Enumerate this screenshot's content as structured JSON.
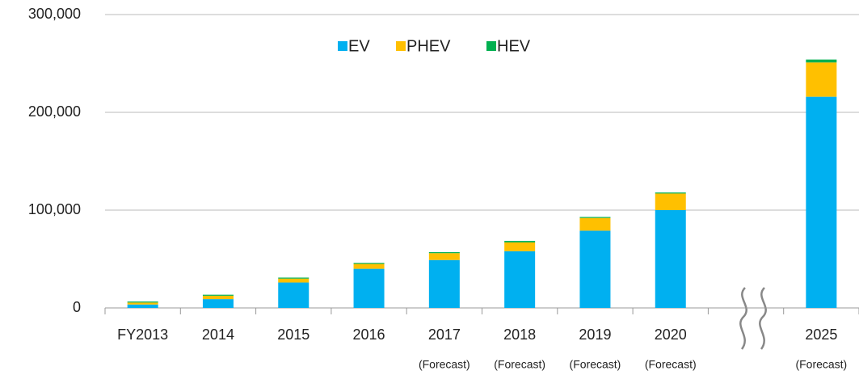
{
  "chart_data": {
    "type": "stacked_bar",
    "categories": [
      "FY2013",
      "2014",
      "2015",
      "2016",
      "2017",
      "2018",
      "2019",
      "2020",
      null,
      "2025"
    ],
    "sublabels": [
      null,
      null,
      null,
      null,
      "(Forecast)",
      "(Forecast)",
      "(Forecast)",
      "(Forecast)",
      null,
      "(Forecast)"
    ],
    "series": [
      {
        "name": "EV",
        "color": "#00b0f0",
        "values": [
          3500,
          9000,
          26000,
          40000,
          49000,
          58000,
          79000,
          100000,
          null,
          216000
        ]
      },
      {
        "name": "PHEV",
        "color": "#ffc000",
        "values": [
          2000,
          3500,
          4000,
          5000,
          7000,
          9000,
          13000,
          17000,
          null,
          35000
        ]
      },
      {
        "name": "HEV",
        "color": "#00b050",
        "values": [
          1000,
          1000,
          1000,
          1000,
          1000,
          1500,
          1000,
          1000,
          null,
          3000
        ]
      }
    ],
    "ylim": [
      0,
      300000
    ],
    "yticks": [
      0,
      {
        "value": 100000,
        "label": "100,000"
      },
      {
        "value": 200000,
        "label": "200,000"
      },
      {
        "value": 300000,
        "label": "300,000"
      }
    ],
    "grid": true,
    "legend": "top"
  }
}
